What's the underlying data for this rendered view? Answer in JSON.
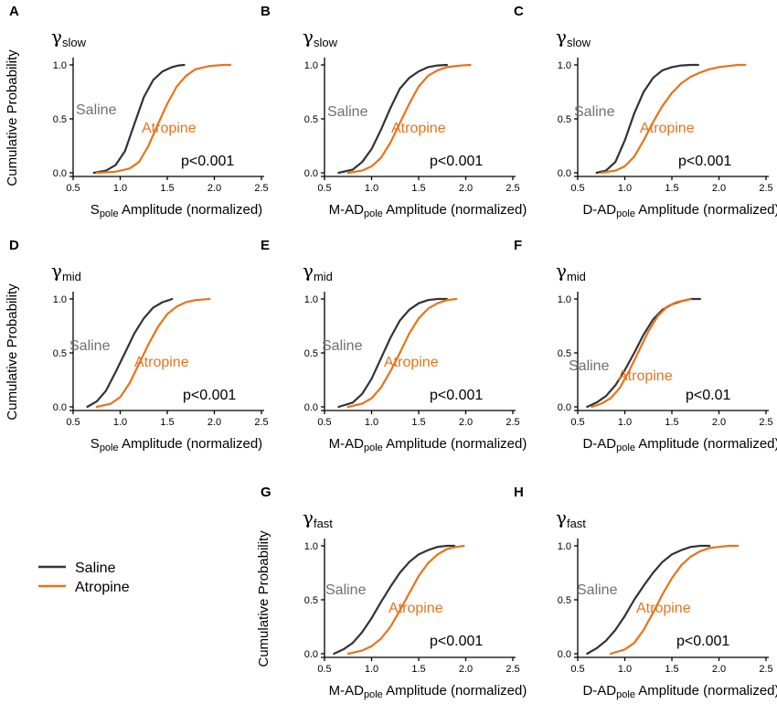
{
  "figure": {
    "y_axis_label": "Cumulative Probability",
    "x_label_suffix": " Amplitude  (normalized)",
    "colors": {
      "saline": "#333333",
      "atropine": "#E8731A",
      "saline_text": "#707070"
    }
  },
  "legend": [
    {
      "label": "Saline",
      "color": "#333333"
    },
    {
      "label": "Atropine",
      "color": "#E8731A"
    }
  ],
  "chart_data": [
    {
      "panel": "A",
      "type": "line",
      "band": "slow",
      "xlabel_main": "S",
      "xlabel_sub": "pole",
      "show_ylabel": true,
      "pvalue": "p<0.001",
      "xlim": [
        0.5,
        2.5
      ],
      "ylim": [
        0,
        1
      ],
      "xticks": [
        "0.5",
        "1.0",
        "1.5",
        "2.0",
        "2.5"
      ],
      "yticks": [
        "0.0",
        "0.5",
        "1.0"
      ],
      "series": [
        {
          "name": "Saline",
          "label": "Saline",
          "color": "#333333",
          "x": [
            0.72,
            0.85,
            0.95,
            1.05,
            1.15,
            1.25,
            1.35,
            1.45,
            1.55,
            1.62,
            1.68
          ],
          "y": [
            0,
            0.02,
            0.07,
            0.2,
            0.45,
            0.7,
            0.86,
            0.94,
            0.98,
            0.995,
            1.0
          ]
        },
        {
          "name": "Atropine",
          "label": "Atropine",
          "color": "#E8731A",
          "x": [
            0.75,
            0.95,
            1.1,
            1.2,
            1.3,
            1.4,
            1.5,
            1.6,
            1.7,
            1.8,
            1.95,
            2.1,
            2.17
          ],
          "y": [
            0,
            0.01,
            0.04,
            0.1,
            0.25,
            0.45,
            0.64,
            0.8,
            0.9,
            0.96,
            0.99,
            1.0,
            1.0
          ]
        }
      ]
    },
    {
      "panel": "B",
      "type": "line",
      "band": "slow",
      "xlabel_main": "M-AD",
      "xlabel_sub": "pole",
      "show_ylabel": false,
      "pvalue": "p<0.001",
      "xlim": [
        0.5,
        2.5
      ],
      "ylim": [
        0,
        1
      ],
      "xticks": [
        "0.5",
        "1.0",
        "1.5",
        "2.0",
        "2.5"
      ],
      "yticks": [
        "0.0",
        "0.5",
        "1.0"
      ],
      "series": [
        {
          "name": "Saline",
          "label": "Saline",
          "color": "#333333",
          "x": [
            0.65,
            0.8,
            0.9,
            1.0,
            1.1,
            1.2,
            1.3,
            1.4,
            1.5,
            1.6,
            1.7,
            1.8
          ],
          "y": [
            0,
            0.03,
            0.1,
            0.22,
            0.4,
            0.6,
            0.78,
            0.88,
            0.94,
            0.98,
            0.995,
            1.0
          ]
        },
        {
          "name": "Atropine",
          "label": "Atropine",
          "color": "#E8731A",
          "x": [
            0.75,
            0.9,
            1.0,
            1.1,
            1.2,
            1.3,
            1.4,
            1.5,
            1.6,
            1.7,
            1.8,
            1.95,
            2.05
          ],
          "y": [
            0,
            0.02,
            0.06,
            0.14,
            0.28,
            0.46,
            0.64,
            0.8,
            0.9,
            0.95,
            0.98,
            0.995,
            1.0
          ]
        }
      ]
    },
    {
      "panel": "C",
      "type": "line",
      "band": "slow",
      "xlabel_main": "D-AD",
      "xlabel_sub": "pole",
      "show_ylabel": false,
      "pvalue": "p<0.001",
      "xlim": [
        0.5,
        2.5
      ],
      "ylim": [
        0,
        1
      ],
      "xticks": [
        "0.5",
        "1.0",
        "1.5",
        "2.0",
        "2.5"
      ],
      "yticks": [
        "0.0",
        "0.5",
        "1.0"
      ],
      "series": [
        {
          "name": "Saline",
          "label": "Saline",
          "color": "#333333",
          "x": [
            0.7,
            0.8,
            0.9,
            1.0,
            1.1,
            1.2,
            1.3,
            1.4,
            1.5,
            1.6,
            1.7,
            1.78
          ],
          "y": [
            0,
            0.02,
            0.1,
            0.3,
            0.55,
            0.75,
            0.88,
            0.95,
            0.98,
            0.995,
            1.0,
            1.0
          ]
        },
        {
          "name": "Atropine",
          "label": "Atropine",
          "color": "#E8731A",
          "x": [
            0.75,
            0.9,
            1.0,
            1.1,
            1.2,
            1.3,
            1.4,
            1.5,
            1.6,
            1.7,
            1.8,
            1.9,
            2.0,
            2.1,
            2.2,
            2.28
          ],
          "y": [
            0,
            0.02,
            0.06,
            0.15,
            0.3,
            0.47,
            0.62,
            0.74,
            0.83,
            0.89,
            0.93,
            0.96,
            0.98,
            0.99,
            1.0,
            1.0
          ]
        }
      ]
    },
    {
      "panel": "D",
      "type": "line",
      "band": "mid",
      "xlabel_main": "S",
      "xlabel_sub": "pole",
      "show_ylabel": true,
      "pvalue": "p<0.001",
      "xlim": [
        0.5,
        2.5
      ],
      "ylim": [
        0,
        1
      ],
      "xticks": [
        "0.5",
        "1.0",
        "1.5",
        "2.0",
        "2.5"
      ],
      "yticks": [
        "0.0",
        "0.5",
        "1.0"
      ],
      "series": [
        {
          "name": "Saline",
          "label": "Saline",
          "color": "#333333",
          "x": [
            0.65,
            0.75,
            0.85,
            0.95,
            1.05,
            1.15,
            1.25,
            1.35,
            1.45,
            1.52,
            1.55
          ],
          "y": [
            0,
            0.05,
            0.15,
            0.32,
            0.5,
            0.68,
            0.82,
            0.92,
            0.97,
            0.99,
            1.0
          ]
        },
        {
          "name": "Atropine",
          "label": "Atropine",
          "color": "#E8731A",
          "x": [
            0.75,
            0.9,
            1.0,
            1.1,
            1.2,
            1.3,
            1.4,
            1.5,
            1.6,
            1.7,
            1.8,
            1.95
          ],
          "y": [
            0,
            0.03,
            0.09,
            0.22,
            0.4,
            0.58,
            0.74,
            0.86,
            0.93,
            0.97,
            0.99,
            1.0
          ]
        }
      ]
    },
    {
      "panel": "E",
      "type": "line",
      "band": "mid",
      "xlabel_main": "M-AD",
      "xlabel_sub": "pole",
      "show_ylabel": false,
      "pvalue": "p<0.001",
      "xlim": [
        0.5,
        2.5
      ],
      "ylim": [
        0,
        1
      ],
      "xticks": [
        "0.5",
        "1.0",
        "1.5",
        "2.0",
        "2.5"
      ],
      "yticks": [
        "0.0",
        "0.5",
        "1.0"
      ],
      "series": [
        {
          "name": "Saline",
          "label": "Saline",
          "color": "#333333",
          "x": [
            0.65,
            0.8,
            0.9,
            1.0,
            1.1,
            1.2,
            1.3,
            1.4,
            1.5,
            1.6,
            1.7,
            1.8
          ],
          "y": [
            0,
            0.04,
            0.12,
            0.26,
            0.45,
            0.64,
            0.8,
            0.9,
            0.96,
            0.99,
            1.0,
            1.0
          ]
        },
        {
          "name": "Atropine",
          "label": "Atropine",
          "color": "#E8731A",
          "x": [
            0.75,
            0.9,
            1.0,
            1.1,
            1.2,
            1.3,
            1.4,
            1.5,
            1.6,
            1.7,
            1.8,
            1.9
          ],
          "y": [
            0,
            0.03,
            0.08,
            0.18,
            0.33,
            0.5,
            0.68,
            0.82,
            0.91,
            0.96,
            0.99,
            1.0
          ]
        }
      ]
    },
    {
      "panel": "F",
      "type": "line",
      "band": "mid",
      "xlabel_main": "D-AD",
      "xlabel_sub": "pole",
      "show_ylabel": false,
      "pvalue": "p<0.01",
      "xlim": [
        0.5,
        2.5
      ],
      "ylim": [
        0,
        1
      ],
      "xticks": [
        "0.5",
        "1.0",
        "1.5",
        "2.0",
        "2.5"
      ],
      "yticks": [
        "0.0",
        "0.5",
        "1.0"
      ],
      "series": [
        {
          "name": "Saline",
          "label": "Saline",
          "color": "#333333",
          "x": [
            0.6,
            0.7,
            0.8,
            0.9,
            1.0,
            1.1,
            1.2,
            1.3,
            1.4,
            1.5,
            1.6,
            1.7,
            1.8
          ],
          "y": [
            0,
            0.04,
            0.1,
            0.2,
            0.34,
            0.5,
            0.67,
            0.81,
            0.9,
            0.95,
            0.98,
            1.0,
            1.0
          ]
        },
        {
          "name": "Atropine",
          "label": "Atropine",
          "color": "#E8731A",
          "x": [
            0.65,
            0.75,
            0.85,
            0.95,
            1.05,
            1.15,
            1.25,
            1.35,
            1.45,
            1.55,
            1.65,
            1.7
          ],
          "y": [
            0,
            0.03,
            0.08,
            0.18,
            0.34,
            0.52,
            0.7,
            0.84,
            0.93,
            0.97,
            0.99,
            1.0
          ]
        }
      ]
    },
    {
      "panel": "G",
      "type": "line",
      "band": "fast",
      "xlabel_main": "M-AD",
      "xlabel_sub": "pole",
      "show_ylabel": true,
      "pvalue": "p<0.001",
      "xlim": [
        0.5,
        2.5
      ],
      "ylim": [
        0,
        1
      ],
      "xticks": [
        "0.5",
        "1.0",
        "1.5",
        "2.0",
        "2.5"
      ],
      "yticks": [
        "0.0",
        "0.5",
        "1.0"
      ],
      "series": [
        {
          "name": "Saline",
          "label": "Saline",
          "color": "#333333",
          "x": [
            0.6,
            0.7,
            0.8,
            0.9,
            1.0,
            1.1,
            1.2,
            1.3,
            1.4,
            1.5,
            1.6,
            1.7,
            1.8,
            1.88
          ],
          "y": [
            0,
            0.04,
            0.1,
            0.2,
            0.33,
            0.48,
            0.62,
            0.75,
            0.85,
            0.92,
            0.96,
            0.99,
            1.0,
            1.0
          ]
        },
        {
          "name": "Atropine",
          "label": "Atropine",
          "color": "#E8731A",
          "x": [
            0.75,
            0.9,
            1.0,
            1.1,
            1.2,
            1.3,
            1.4,
            1.5,
            1.6,
            1.7,
            1.8,
            1.9,
            1.98
          ],
          "y": [
            0,
            0.03,
            0.07,
            0.14,
            0.25,
            0.4,
            0.56,
            0.72,
            0.84,
            0.92,
            0.97,
            0.99,
            1.0
          ]
        }
      ]
    },
    {
      "panel": "H",
      "type": "line",
      "band": "fast",
      "xlabel_main": "D-AD",
      "xlabel_sub": "pole",
      "show_ylabel": false,
      "pvalue": "p<0.001",
      "xlim": [
        0.5,
        2.5
      ],
      "ylim": [
        0,
        1
      ],
      "xticks": [
        "0.5",
        "1.0",
        "1.5",
        "2.0",
        "2.5"
      ],
      "yticks": [
        "0.0",
        "0.5",
        "1.0"
      ],
      "series": [
        {
          "name": "Saline",
          "label": "Saline",
          "color": "#333333",
          "x": [
            0.6,
            0.7,
            0.8,
            0.9,
            1.0,
            1.1,
            1.2,
            1.3,
            1.4,
            1.5,
            1.6,
            1.7,
            1.8,
            1.9
          ],
          "y": [
            0,
            0.05,
            0.12,
            0.22,
            0.35,
            0.5,
            0.63,
            0.75,
            0.85,
            0.92,
            0.96,
            0.99,
            1.0,
            1.0
          ]
        },
        {
          "name": "Atropine",
          "label": "Atropine",
          "color": "#E8731A",
          "x": [
            0.85,
            1.0,
            1.1,
            1.2,
            1.3,
            1.4,
            1.5,
            1.6,
            1.7,
            1.8,
            1.9,
            2.0,
            2.1,
            2.2
          ],
          "y": [
            0,
            0.04,
            0.1,
            0.22,
            0.38,
            0.55,
            0.7,
            0.82,
            0.9,
            0.95,
            0.98,
            0.99,
            1.0,
            1.0
          ]
        }
      ]
    }
  ]
}
